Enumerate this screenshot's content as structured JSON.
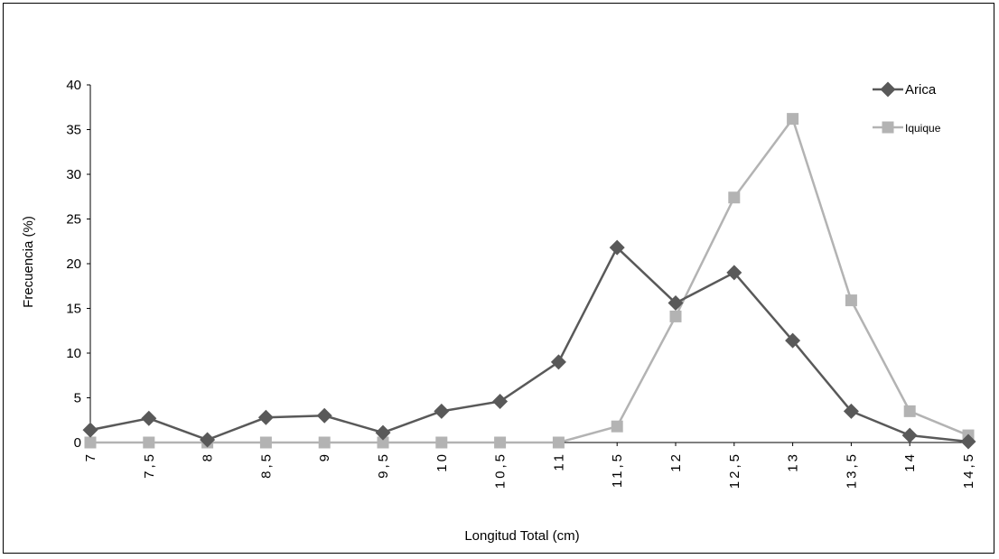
{
  "chart_data": {
    "type": "line",
    "title": "",
    "xlabel": "Longitud Total (cm)",
    "ylabel": "Frecuencia  (%)",
    "categories": [
      "7",
      "7,5",
      "8",
      "8,5",
      "9",
      "9,5",
      "10",
      "10,5",
      "11",
      "11,5",
      "12",
      "12,5",
      "13",
      "13,5",
      "14",
      "14,5"
    ],
    "y_ticks": [
      "0",
      "5",
      "10",
      "15",
      "20",
      "25",
      "30",
      "35",
      "40"
    ],
    "ylim": [
      0,
      40
    ],
    "grid": false,
    "legend_position": "top-right",
    "series": [
      {
        "name": "Arica",
        "marker": "diamond",
        "color": "#595959",
        "values": [
          1.4,
          2.7,
          0.3,
          2.8,
          3.0,
          1.1,
          3.5,
          4.6,
          9.0,
          21.8,
          15.6,
          19.0,
          11.4,
          3.5,
          0.8,
          0.1
        ]
      },
      {
        "name": "Iquique",
        "marker": "square",
        "color": "#b3b3b3",
        "values": [
          0,
          0,
          0,
          0,
          0,
          0,
          0,
          0,
          0,
          1.8,
          14.1,
          27.4,
          36.2,
          15.9,
          3.5,
          0.8
        ]
      }
    ]
  }
}
